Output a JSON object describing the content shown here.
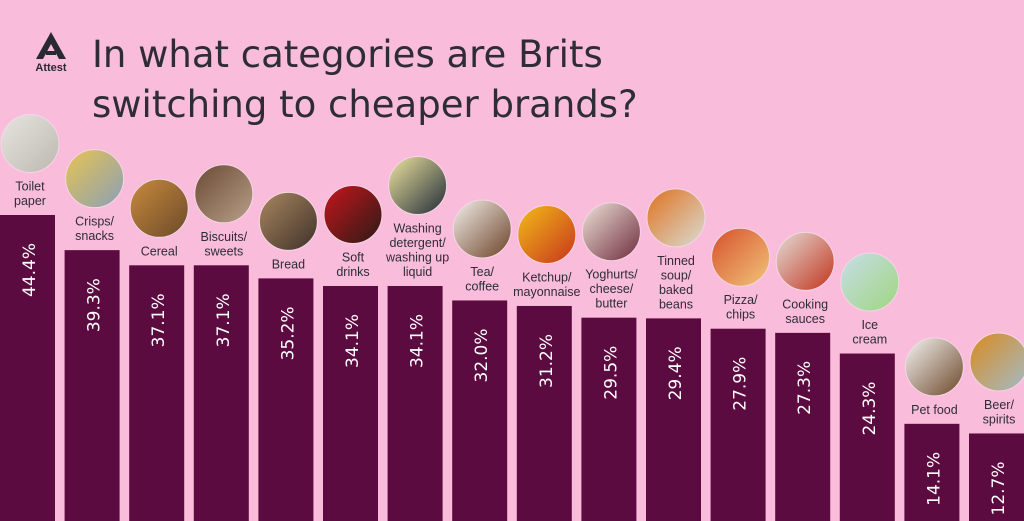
{
  "brand": {
    "name": "Attest",
    "logo_icon": "attest-logo-icon"
  },
  "title": "In what categories are Brits switching to cheaper brands?",
  "colors": {
    "background": "#f9bcdb",
    "bar": "#5c0b40",
    "value_text": "#ffffff",
    "text": "#2e2c37"
  },
  "chart_data": {
    "type": "bar",
    "title": "In what categories are Brits switching to cheaper brands?",
    "xlabel": "",
    "ylabel": "",
    "ylim": [
      0,
      50
    ],
    "unit": "%",
    "categories": [
      "Toilet paper",
      "Crisps/ snacks",
      "Cereal",
      "Biscuits/ sweets",
      "Bread",
      "Soft drinks",
      "Washing detergent/ washing up liquid",
      "Tea/ coffee",
      "Ketchup/ mayonnaise",
      "Yoghurts/ cheese/ butter",
      "Tinned soup/ baked beans",
      "Pizza/ chips",
      "Cooking sauces",
      "Ice cream",
      "Pet food",
      "Beer/ spirits"
    ],
    "category_label_lines": [
      [
        "Toilet",
        "paper"
      ],
      [
        "Crisps/",
        "snacks"
      ],
      [
        "Cereal"
      ],
      [
        "Biscuits/",
        "sweets"
      ],
      [
        "Bread"
      ],
      [
        "Soft",
        "drinks"
      ],
      [
        "Washing",
        "detergent/",
        "washing up",
        "liquid"
      ],
      [
        "Tea/",
        "coffee"
      ],
      [
        "Ketchup/",
        "mayonnaise"
      ],
      [
        "Yoghurts/",
        "cheese/",
        "butter"
      ],
      [
        "Tinned",
        "soup/",
        "baked",
        "beans"
      ],
      [
        "Pizza/",
        "chips"
      ],
      [
        "Cooking",
        "sauces"
      ],
      [
        "Ice",
        "cream"
      ],
      [
        "Pet food"
      ],
      [
        "Beer/",
        "spirits"
      ]
    ],
    "values": [
      44.4,
      39.3,
      37.1,
      37.1,
      35.2,
      34.1,
      34.1,
      32.0,
      31.2,
      29.5,
      29.4,
      27.9,
      27.3,
      24.3,
      14.1,
      12.7
    ],
    "value_labels": [
      "44.4%",
      "39.3%",
      "37.1%",
      "37.1%",
      "35.2%",
      "34.1%",
      "34.1%",
      "32.0%",
      "31.2%",
      "29.5%",
      "29.4%",
      "27.9%",
      "27.3%",
      "24.3%",
      "14.1%",
      "12.7%"
    ],
    "category_images": [
      {
        "name": "toilet-paper-photo",
        "colors": [
          "#e7e5e1",
          "#bdb8b0"
        ]
      },
      {
        "name": "crisps-photo",
        "colors": [
          "#e8c452",
          "#8a9fb6"
        ]
      },
      {
        "name": "cereal-photo",
        "colors": [
          "#c98a3d",
          "#6b4a2a"
        ]
      },
      {
        "name": "biscuits-photo",
        "colors": [
          "#6a4a33",
          "#b9a08a"
        ]
      },
      {
        "name": "bread-photo",
        "colors": [
          "#a9875f",
          "#3e3129"
        ]
      },
      {
        "name": "soft-drinks-photo",
        "colors": [
          "#c6161c",
          "#2b1a16"
        ]
      },
      {
        "name": "washing-detergent-photo",
        "colors": [
          "#f0e6a0",
          "#1f2a36"
        ]
      },
      {
        "name": "coffee-photo",
        "colors": [
          "#f4f1ec",
          "#6b4126"
        ]
      },
      {
        "name": "ketchup-mayonnaise-photo",
        "colors": [
          "#f1bd18",
          "#c8341c"
        ]
      },
      {
        "name": "yoghurt-photo",
        "colors": [
          "#efe4da",
          "#6d2a3a"
        ]
      },
      {
        "name": "tinned-soup-photo",
        "colors": [
          "#e0711e",
          "#d9ddd4"
        ]
      },
      {
        "name": "pizza-photo",
        "colors": [
          "#d6502c",
          "#f2c57a"
        ]
      },
      {
        "name": "cooking-sauces-photo",
        "colors": [
          "#e4ddd8",
          "#c2331c"
        ]
      },
      {
        "name": "ice-cream-photo",
        "colors": [
          "#c6dde8",
          "#9fd67f"
        ]
      },
      {
        "name": "dog-photo",
        "colors": [
          "#f6f6f4",
          "#6b4628"
        ]
      },
      {
        "name": "beer-photo",
        "colors": [
          "#d98b1e",
          "#a3bbc9"
        ]
      }
    ]
  }
}
